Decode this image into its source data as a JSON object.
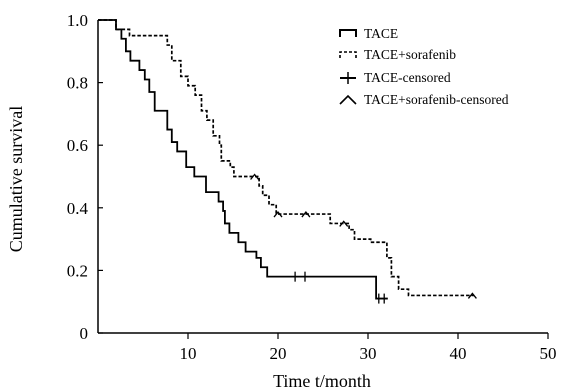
{
  "chart_data": {
    "type": "line",
    "xlabel": "Time t/month",
    "ylabel": "Cumulative survival",
    "xlim": [
      0,
      50
    ],
    "ylim": [
      0,
      1.0
    ],
    "x_ticks": [
      10,
      20,
      30,
      40,
      50
    ],
    "y_ticks": [
      0,
      0.2,
      0.4,
      0.6,
      0.8,
      1.0
    ],
    "x_tick_labels": [
      "10",
      "20",
      "30",
      "40",
      "50"
    ],
    "y_tick_labels": [
      "0",
      "0.2",
      "0.4",
      "0.6",
      "0.8",
      "1.0"
    ],
    "grid": false,
    "legend_position": "top-right",
    "legend": [
      "TACE",
      "TACE+sorafenib",
      "TACE-censored",
      "TACE+sorafenib-censored"
    ],
    "series": [
      {
        "name": "TACE",
        "style": "solid",
        "step": true,
        "color": "#000000",
        "points": [
          [
            0,
            1.0
          ],
          [
            2.0,
            0.97
          ],
          [
            2.6,
            0.94
          ],
          [
            3.1,
            0.9
          ],
          [
            3.6,
            0.87
          ],
          [
            4.6,
            0.84
          ],
          [
            5.2,
            0.81
          ],
          [
            5.7,
            0.77
          ],
          [
            6.3,
            0.71
          ],
          [
            7.7,
            0.65
          ],
          [
            8.2,
            0.61
          ],
          [
            8.8,
            0.58
          ],
          [
            9.8,
            0.53
          ],
          [
            10.7,
            0.5
          ],
          [
            12.0,
            0.45
          ],
          [
            13.4,
            0.42
          ],
          [
            13.9,
            0.39
          ],
          [
            14.1,
            0.35
          ],
          [
            14.6,
            0.32
          ],
          [
            15.6,
            0.29
          ],
          [
            16.4,
            0.26
          ],
          [
            17.6,
            0.24
          ],
          [
            18.1,
            0.21
          ],
          [
            18.8,
            0.18
          ],
          [
            30.9,
            0.11
          ],
          [
            32.2,
            0.11
          ]
        ],
        "censored": [
          [
            21.9,
            0.18
          ],
          [
            23.0,
            0.18
          ],
          [
            31.2,
            0.11
          ],
          [
            31.8,
            0.11
          ]
        ]
      },
      {
        "name": "TACE+sorafenib",
        "style": "dashed",
        "step": true,
        "color": "#000000",
        "points": [
          [
            0,
            1.0
          ],
          [
            2.0,
            0.97
          ],
          [
            3.5,
            0.95
          ],
          [
            7.7,
            0.92
          ],
          [
            8.2,
            0.87
          ],
          [
            9.2,
            0.82
          ],
          [
            10.0,
            0.79
          ],
          [
            10.8,
            0.76
          ],
          [
            11.5,
            0.71
          ],
          [
            12.1,
            0.68
          ],
          [
            12.8,
            0.63
          ],
          [
            13.5,
            0.6
          ],
          [
            13.7,
            0.55
          ],
          [
            14.7,
            0.53
          ],
          [
            15.1,
            0.5
          ],
          [
            17.9,
            0.47
          ],
          [
            18.3,
            0.44
          ],
          [
            19.0,
            0.41
          ],
          [
            19.8,
            0.38
          ],
          [
            25.8,
            0.35
          ],
          [
            27.9,
            0.33
          ],
          [
            28.5,
            0.3
          ],
          [
            30.3,
            0.29
          ],
          [
            32.1,
            0.24
          ],
          [
            32.6,
            0.18
          ],
          [
            33.4,
            0.14
          ],
          [
            34.5,
            0.12
          ],
          [
            41.8,
            0.12
          ]
        ],
        "censored": [
          [
            17.4,
            0.5
          ],
          [
            20.0,
            0.38
          ],
          [
            23.1,
            0.38
          ],
          [
            27.3,
            0.35
          ],
          [
            41.6,
            0.12
          ]
        ]
      }
    ]
  }
}
